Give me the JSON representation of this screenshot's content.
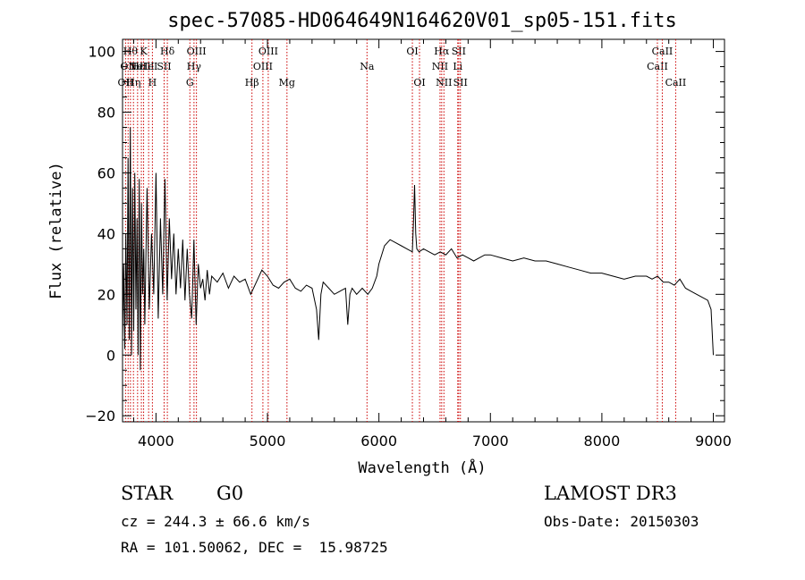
{
  "chart_data": {
    "type": "line",
    "title": "spec-57085-HD064649N164620V01_sp05-151.fits",
    "xlabel": "Wavelength (Å)",
    "ylabel": "Flux (relative)",
    "xlim": [
      3700,
      9100
    ],
    "ylim": [
      -22,
      104
    ],
    "x_ticks": [
      4000,
      5000,
      6000,
      7000,
      8000,
      9000
    ],
    "y_ticks": [
      -20,
      0,
      20,
      40,
      60,
      80,
      100
    ],
    "grid": false,
    "line_color": "#000000",
    "marker_color": "#cc0000",
    "series": [
      {
        "x": [
          3700,
          3710,
          3720,
          3730,
          3740,
          3750,
          3760,
          3770,
          3780,
          3790,
          3800,
          3810,
          3820,
          3830,
          3840,
          3850,
          3860,
          3870,
          3880,
          3890,
          3900,
          3920,
          3940,
          3960,
          3980,
          4000,
          4020,
          4040,
          4060,
          4080,
          4100,
          4120,
          4140,
          4160,
          4180,
          4200,
          4220,
          4240,
          4260,
          4280,
          4300,
          4320,
          4340,
          4360,
          4380,
          4400,
          4420,
          4440,
          4460,
          4480,
          4500,
          4550,
          4600,
          4650,
          4700,
          4750,
          4800,
          4850,
          4900,
          4950,
          5000,
          5050,
          5100,
          5150,
          5200,
          5250,
          5300,
          5350,
          5400,
          5440,
          5460,
          5480,
          5500,
          5550,
          5600,
          5650,
          5700,
          5720,
          5740,
          5760,
          5780,
          5800,
          5850,
          5900,
          5940,
          5980,
          6000,
          6050,
          6100,
          6150,
          6200,
          6250,
          6300,
          6310,
          6320,
          6330,
          6340,
          6360,
          6400,
          6450,
          6500,
          6550,
          6600,
          6650,
          6700,
          6750,
          6800,
          6850,
          6900,
          6950,
          7000,
          7100,
          7200,
          7300,
          7400,
          7500,
          7600,
          7700,
          7800,
          7900,
          8000,
          8100,
          8200,
          8300,
          8400,
          8450,
          8500,
          8550,
          8600,
          8650,
          8700,
          8750,
          8800,
          8850,
          8900,
          8950,
          8980,
          9000
        ],
        "y": [
          5,
          30,
          2,
          40,
          10,
          65,
          5,
          75,
          0,
          55,
          8,
          60,
          15,
          45,
          0,
          58,
          -5,
          50,
          20,
          35,
          10,
          55,
          15,
          40,
          20,
          60,
          12,
          45,
          20,
          58,
          18,
          45,
          25,
          40,
          20,
          35,
          22,
          38,
          18,
          35,
          20,
          12,
          38,
          10,
          30,
          22,
          25,
          18,
          28,
          20,
          26,
          24,
          27,
          22,
          26,
          24,
          25,
          20,
          24,
          28,
          26,
          23,
          22,
          24,
          25,
          22,
          21,
          23,
          22,
          15,
          5,
          20,
          24,
          22,
          20,
          21,
          22,
          10,
          20,
          22,
          21,
          20,
          22,
          20,
          22,
          26,
          30,
          36,
          38,
          37,
          36,
          35,
          34,
          44,
          56,
          40,
          35,
          34,
          35,
          34,
          33,
          34,
          33,
          35,
          32,
          33,
          32,
          31,
          32,
          33,
          33,
          32,
          31,
          32,
          31,
          31,
          30,
          29,
          28,
          27,
          27,
          26,
          25,
          26,
          26,
          25,
          26,
          24,
          24,
          23,
          25,
          22,
          21,
          20,
          19,
          18,
          15,
          0
        ]
      }
    ],
    "line_markers": [
      {
        "wavelength": 3727,
        "label": "OII",
        "row": 3
      },
      {
        "wavelength": 3750,
        "label": "OII",
        "row": 2
      },
      {
        "wavelength": 3771,
        "label": "Hθ",
        "row": 1
      },
      {
        "wavelength": 3798,
        "label": "Hη",
        "row": 3
      },
      {
        "wavelength": 3835,
        "label": "Hε",
        "row": 2
      },
      {
        "wavelength": 3869,
        "label": "NeIII",
        "row": 2
      },
      {
        "wavelength": 3889,
        "label": "K",
        "row": 1
      },
      {
        "wavelength": 3934,
        "label": "HeI",
        "row": 2
      },
      {
        "wavelength": 3968,
        "label": "H",
        "row": 3
      },
      {
        "wavelength": 4073,
        "label": "SII",
        "row": 2
      },
      {
        "wavelength": 4102,
        "label": "Hδ",
        "row": 1
      },
      {
        "wavelength": 4304,
        "label": "G",
        "row": 3
      },
      {
        "wavelength": 4341,
        "label": "Hγ",
        "row": 2
      },
      {
        "wavelength": 4363,
        "label": "OIII",
        "row": 1
      },
      {
        "wavelength": 4861,
        "label": "Hβ",
        "row": 3
      },
      {
        "wavelength": 4959,
        "label": "OIII",
        "row": 2
      },
      {
        "wavelength": 5007,
        "label": "OIII",
        "row": 1
      },
      {
        "wavelength": 5175,
        "label": "Mg",
        "row": 3
      },
      {
        "wavelength": 5893,
        "label": "Na",
        "row": 2
      },
      {
        "wavelength": 6300,
        "label": "OI",
        "row": 1
      },
      {
        "wavelength": 6364,
        "label": "OI",
        "row": 3
      },
      {
        "wavelength": 6548,
        "label": "NII",
        "row": 2
      },
      {
        "wavelength": 6563,
        "label": "Hα",
        "row": 1
      },
      {
        "wavelength": 6583,
        "label": "NII",
        "row": 3
      },
      {
        "wavelength": 6707,
        "label": "Li",
        "row": 2
      },
      {
        "wavelength": 6716,
        "label": "SII",
        "row": 1
      },
      {
        "wavelength": 6731,
        "label": "SII",
        "row": 3
      },
      {
        "wavelength": 8498,
        "label": "CaII",
        "row": 2
      },
      {
        "wavelength": 8542,
        "label": "CaII",
        "row": 1
      },
      {
        "wavelength": 8662,
        "label": "CaII",
        "row": 3
      }
    ]
  },
  "info": {
    "class_label": "STAR",
    "subclass": "G0",
    "survey": "LAMOST DR3",
    "cz_text": "cz = 244.3 ± 66.6 km/s",
    "obs_date_text": "Obs-Date: 20150303",
    "coord_text": "RA = 101.50062, DEC =  15.98725"
  }
}
